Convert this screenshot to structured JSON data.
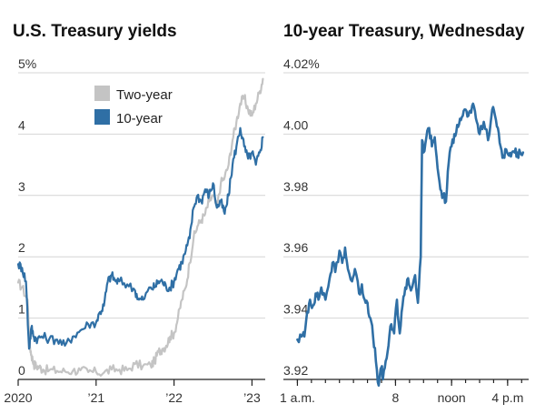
{
  "chart_data": [
    {
      "type": "line",
      "title": "U.S. Treasury yields",
      "ylim": [
        0,
        5
      ],
      "y_ticks": [
        0,
        1,
        2,
        3,
        4,
        5
      ],
      "y_tick_labels": [
        "0",
        "1",
        "2",
        "3",
        "4",
        "5%"
      ],
      "x_ticks": [
        2020.0,
        2021.0,
        2022.0,
        2023.0
      ],
      "x_tick_labels": [
        "2020",
        "’21",
        "’22",
        "’23"
      ],
      "xlim": [
        2020.0,
        2023.17
      ],
      "grid": true,
      "legend": "top-left",
      "series": [
        {
          "name": "Two-year",
          "color": "#c4c4c4",
          "x": [
            2020.0,
            2020.05,
            2020.12,
            2020.15,
            2020.17,
            2020.2,
            2020.23,
            2020.27,
            2020.32,
            2020.4,
            2020.5,
            2020.6,
            2020.7,
            2020.8,
            2020.9,
            2021.0,
            2021.1,
            2021.2,
            2021.3,
            2021.4,
            2021.5,
            2021.6,
            2021.7,
            2021.75,
            2021.8,
            2021.85,
            2021.9,
            2021.95,
            2022.0,
            2022.05,
            2022.1,
            2022.15,
            2022.2,
            2022.25,
            2022.3,
            2022.35,
            2022.4,
            2022.45,
            2022.5,
            2022.55,
            2022.6,
            2022.65,
            2022.7,
            2022.75,
            2022.8,
            2022.85,
            2022.9,
            2022.95,
            2023.0,
            2023.05,
            2023.1,
            2023.14
          ],
          "values": [
            1.58,
            1.5,
            1.3,
            0.55,
            0.4,
            0.25,
            0.22,
            0.2,
            0.16,
            0.15,
            0.14,
            0.13,
            0.14,
            0.15,
            0.12,
            0.12,
            0.11,
            0.16,
            0.16,
            0.15,
            0.25,
            0.22,
            0.23,
            0.3,
            0.45,
            0.5,
            0.55,
            0.7,
            0.75,
            1.0,
            1.3,
            1.5,
            1.9,
            2.3,
            2.5,
            2.6,
            2.7,
            2.9,
            3.0,
            2.8,
            3.2,
            3.3,
            3.5,
            3.9,
            4.2,
            4.5,
            4.6,
            4.4,
            4.3,
            4.5,
            4.7,
            4.9
          ]
        },
        {
          "name": "10-year",
          "color": "#2f6fa5",
          "x": [
            2020.0,
            2020.05,
            2020.1,
            2020.14,
            2020.17,
            2020.2,
            2020.25,
            2020.3,
            2020.4,
            2020.5,
            2020.6,
            2020.7,
            2020.8,
            2020.9,
            2021.0,
            2021.05,
            2021.1,
            2021.15,
            2021.2,
            2021.25,
            2021.3,
            2021.4,
            2021.5,
            2021.55,
            2021.6,
            2021.7,
            2021.75,
            2021.8,
            2021.85,
            2021.9,
            2021.95,
            2022.0,
            2022.05,
            2022.1,
            2022.15,
            2022.2,
            2022.25,
            2022.3,
            2022.35,
            2022.4,
            2022.45,
            2022.5,
            2022.55,
            2022.6,
            2022.65,
            2022.7,
            2022.75,
            2022.8,
            2022.85,
            2022.9,
            2022.95,
            2023.0,
            2023.05,
            2023.1,
            2023.14
          ],
          "values": [
            1.88,
            1.82,
            1.6,
            0.5,
            0.85,
            0.7,
            0.66,
            0.7,
            0.66,
            0.65,
            0.55,
            0.7,
            0.8,
            0.9,
            0.93,
            1.1,
            1.2,
            1.6,
            1.7,
            1.6,
            1.6,
            1.55,
            1.45,
            1.3,
            1.3,
            1.5,
            1.5,
            1.6,
            1.6,
            1.5,
            1.5,
            1.6,
            1.8,
            1.9,
            2.1,
            2.3,
            2.8,
            3.0,
            2.9,
            3.1,
            3.0,
            3.2,
            2.8,
            2.9,
            2.7,
            3.0,
            3.5,
            3.8,
            4.1,
            3.8,
            3.6,
            3.7,
            3.5,
            3.7,
            3.95
          ]
        }
      ]
    },
    {
      "type": "line",
      "title": "10-year Treasury, Wednesday",
      "ylim": [
        3.92,
        4.02
      ],
      "y_ticks": [
        3.92,
        3.94,
        3.96,
        3.98,
        4.0,
        4.02
      ],
      "y_tick_labels": [
        "3.92",
        "3.94",
        "3.96",
        "3.98",
        "4.00",
        "4.02%"
      ],
      "x_ticks": [
        1,
        8,
        12,
        16
      ],
      "x_tick_labels": [
        "1 a.m.",
        "8",
        "noon",
        "4 p.m"
      ],
      "minor_x_ticks": [
        1,
        2,
        3,
        4,
        5,
        6,
        7,
        8,
        9,
        10,
        11,
        12,
        13,
        14,
        15,
        16,
        17
      ],
      "xlim": [
        0,
        17.5
      ],
      "grid": true,
      "series": [
        {
          "name": "",
          "color": "#2f6fa5",
          "x": [
            1.0,
            1.3,
            1.5,
            1.7,
            1.9,
            2.1,
            2.3,
            2.5,
            2.7,
            3.0,
            3.3,
            3.5,
            3.7,
            4.0,
            4.2,
            4.4,
            4.6,
            4.9,
            5.1,
            5.4,
            5.6,
            5.8,
            6.0,
            6.2,
            6.4,
            6.6,
            6.8,
            7.0,
            7.1,
            7.3,
            7.5,
            7.7,
            7.9,
            8.1,
            8.3,
            8.5,
            8.7,
            8.9,
            9.1,
            9.4,
            9.6,
            9.8,
            9.9,
            10.0,
            10.2,
            10.4,
            10.6,
            10.8,
            11.0,
            11.2,
            11.4,
            11.6,
            11.8,
            12.0,
            12.2,
            12.4,
            12.6,
            12.8,
            13.0,
            13.2,
            13.4,
            13.6,
            13.8,
            14.0,
            14.3,
            14.6,
            14.9,
            15.1,
            15.3,
            15.5,
            15.7,
            15.9,
            16.1,
            16.3,
            16.5,
            16.7,
            16.9,
            17.1
          ],
          "values": [
            3.933,
            3.934,
            3.934,
            3.942,
            3.946,
            3.944,
            3.948,
            3.946,
            3.95,
            3.946,
            3.953,
            3.958,
            3.955,
            3.962,
            3.958,
            3.963,
            3.956,
            3.952,
            3.956,
            3.948,
            3.951,
            3.946,
            3.945,
            3.94,
            3.934,
            3.926,
            3.918,
            3.924,
            3.92,
            3.926,
            3.931,
            3.938,
            3.935,
            3.946,
            3.935,
            3.944,
            3.95,
            3.953,
            3.949,
            3.954,
            3.945,
            3.96,
            3.998,
            3.994,
            3.999,
            4.002,
            3.996,
            3.999,
            3.989,
            3.982,
            3.98,
            3.978,
            3.991,
            3.996,
            4.0,
            4.003,
            4.005,
            4.006,
            4.008,
            4.006,
            4.007,
            4.009,
            4.004,
            4.0,
            4.004,
            3.998,
            4.008,
            4.006,
            4.002,
            3.996,
            3.993,
            3.995,
            3.993,
            3.994,
            3.994,
            3.994,
            3.994,
            3.994
          ]
        }
      ]
    }
  ]
}
